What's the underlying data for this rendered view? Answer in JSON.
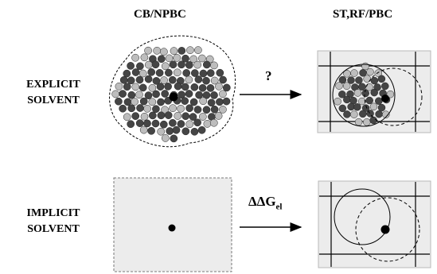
{
  "headers": {
    "left": "CB/NPBC",
    "right": "ST,RF/PBC"
  },
  "rows": {
    "explicit": {
      "line1": "EXPLICIT",
      "line2": "SOLVENT"
    },
    "implicit": {
      "line1": "IMPLICIT",
      "line2": "SOLVENT"
    }
  },
  "arrows": {
    "top_label": "?",
    "bottom_label_main": "ΔΔG",
    "bottom_label_sub": "el"
  },
  "colors": {
    "panel_fill": "#ececec",
    "molecule_dark": "#454545",
    "molecule_light": "#bdbdbd",
    "ion": "#000000"
  }
}
